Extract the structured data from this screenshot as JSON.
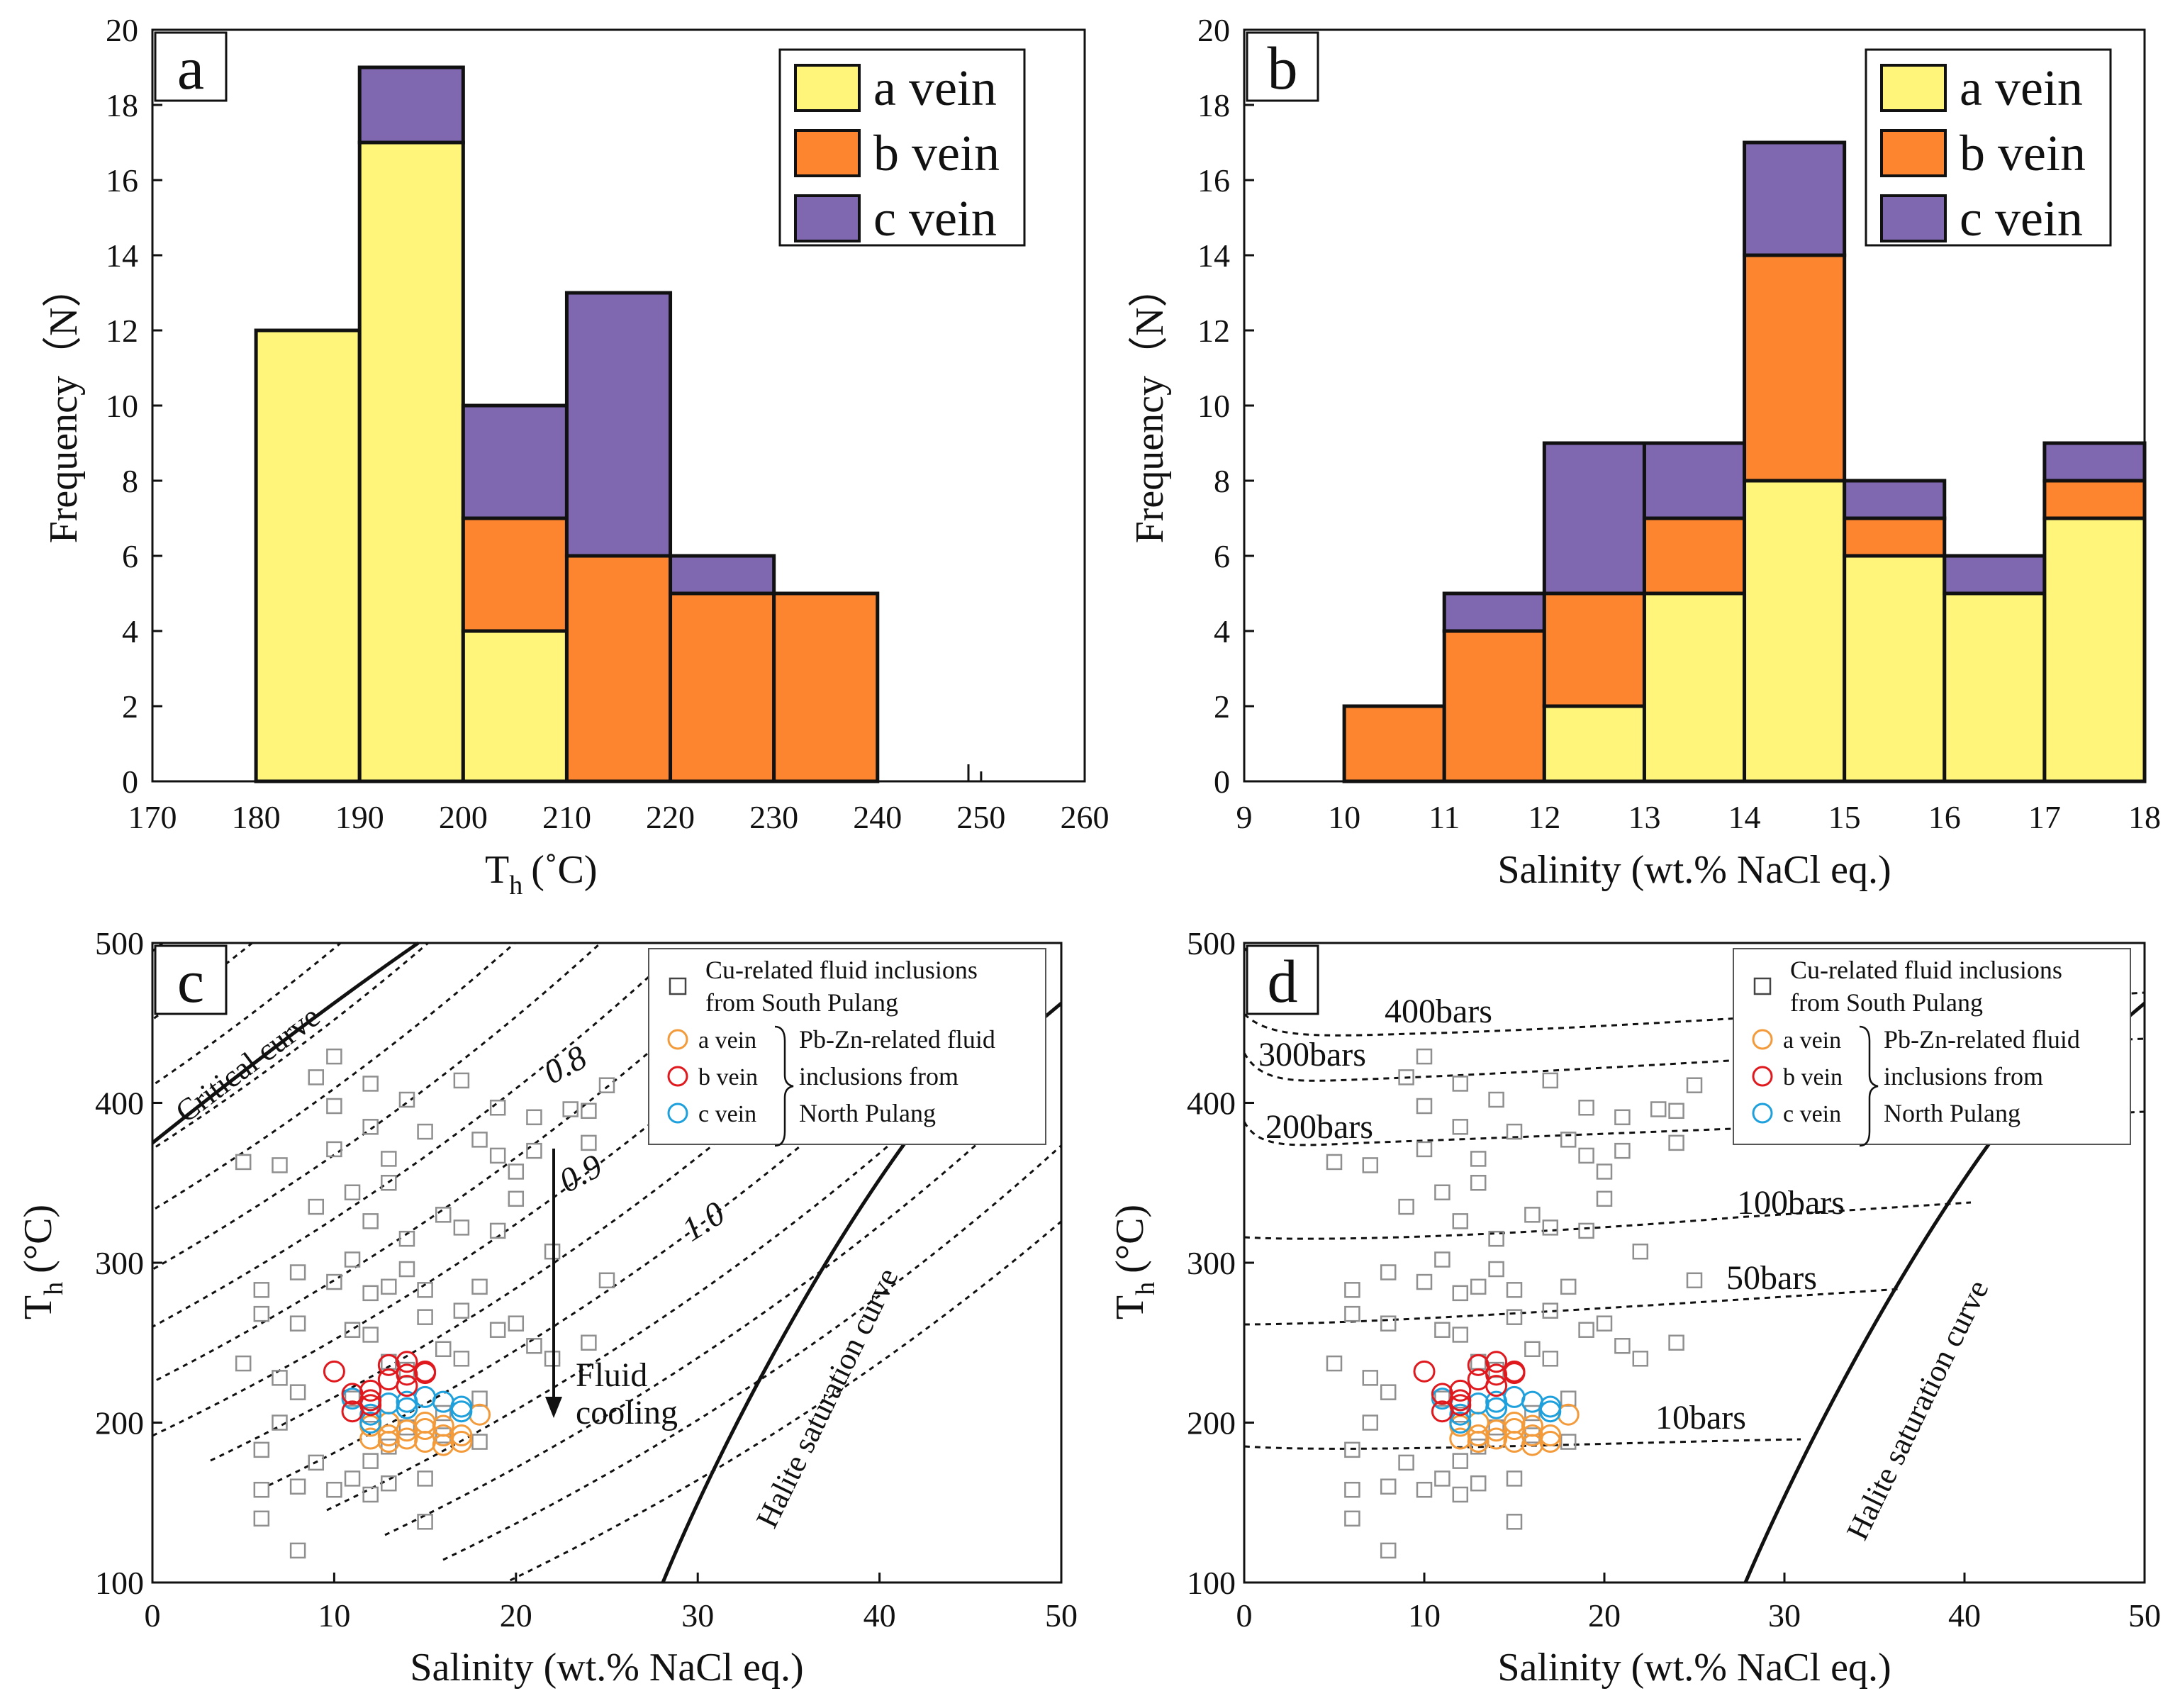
{
  "colors": {
    "a": "#fef57a",
    "b": "#fd8530",
    "c": "#7f68b0",
    "line": "#111111",
    "cu": "#8f8f8f",
    "fa": "#f39a3a",
    "fb": "#e0191e",
    "fc": "#1ea0dc"
  },
  "chart_data": [
    {
      "panel": "a",
      "type": "bar",
      "stacked": true,
      "ylabel": "Frequency（N）",
      "xlabel_main": "T",
      "xlabel_sub": "h",
      "xlabel_unit": "(˚C)",
      "xlim": [
        170,
        260
      ],
      "ylim": [
        0,
        20
      ],
      "xticks": [
        170,
        180,
        190,
        200,
        210,
        220,
        230,
        240,
        250,
        260
      ],
      "yticks": [
        0,
        2,
        4,
        6,
        8,
        10,
        12,
        14,
        16,
        18,
        20
      ],
      "bin_starts": [
        180,
        190,
        200,
        210,
        220,
        230
      ],
      "series": [
        {
          "name": "a vein",
          "key": "a",
          "values": [
            12,
            17,
            4,
            0,
            0,
            0
          ]
        },
        {
          "name": "b vein",
          "key": "b",
          "values": [
            0,
            0,
            3,
            6,
            5,
            5
          ]
        },
        {
          "name": "c vein",
          "key": "c",
          "values": [
            0,
            2,
            3,
            7,
            1,
            0
          ]
        }
      ],
      "legend": [
        "a vein",
        "b vein",
        "c vein"
      ]
    },
    {
      "panel": "b",
      "type": "bar",
      "stacked": true,
      "ylabel": "Frequency（N）",
      "xlabel": "Salinity (wt.% NaCl eq.)",
      "xlim": [
        9,
        18
      ],
      "ylim": [
        0,
        20
      ],
      "xticks": [
        9,
        10,
        11,
        12,
        13,
        14,
        15,
        16,
        17,
        18
      ],
      "yticks": [
        0,
        2,
        4,
        6,
        8,
        10,
        12,
        14,
        16,
        18,
        20
      ],
      "bin_starts": [
        10,
        11,
        12,
        13,
        14,
        15,
        16,
        17
      ],
      "series": [
        {
          "name": "a vein",
          "key": "a",
          "values": [
            0,
            0,
            2,
            5,
            8,
            6,
            5,
            7
          ]
        },
        {
          "name": "b vein",
          "key": "b",
          "values": [
            2,
            4,
            3,
            2,
            6,
            1,
            0,
            1
          ]
        },
        {
          "name": "c vein",
          "key": "c",
          "values": [
            0,
            1,
            4,
            2,
            3,
            1,
            1,
            1
          ]
        }
      ],
      "legend": [
        "a vein",
        "b vein",
        "c vein"
      ]
    },
    {
      "panel": "c",
      "type": "scatter",
      "xlabel": "Salinity (wt.% NaCl eq.)",
      "ylabel_main": "T",
      "ylabel_sub": "h",
      "ylabel_unit": "(°C)",
      "xlim": [
        0,
        50
      ],
      "ylim": [
        100,
        500
      ],
      "xticks": [
        0,
        10,
        20,
        30,
        40,
        50
      ],
      "yticks": [
        100,
        200,
        300,
        400,
        500
      ],
      "curve_labels": {
        "critical": "Critical curve",
        "halite": "Halite saturation curve"
      },
      "density_labels": [
        "0.8",
        "0.9",
        "1.0"
      ],
      "annotation": [
        "Fluid",
        "cooling"
      ],
      "legend": {
        "cu": [
          "Cu-related fluid inclusions",
          "from South Pulang"
        ],
        "veins": [
          "a vein",
          "b vein",
          "c vein"
        ],
        "pbzn": [
          "Pb-Zn-related fluid",
          "inclusions from",
          "North Pulang"
        ]
      }
    },
    {
      "panel": "d",
      "type": "scatter",
      "xlabel": "Salinity (wt.% NaCl eq.)",
      "ylabel_main": "T",
      "ylabel_sub": "h",
      "ylabel_unit": "(°C)",
      "xlim": [
        0,
        50
      ],
      "ylim": [
        100,
        500
      ],
      "xticks": [
        0,
        10,
        20,
        30,
        40,
        50
      ],
      "yticks": [
        100,
        200,
        300,
        400,
        500
      ],
      "curve_labels": {
        "halite": "Halite saturation curve"
      },
      "isobar_labels": [
        "400bars",
        "300bars",
        "200bars",
        "100bars",
        "50bars",
        "10bars"
      ],
      "legend": {
        "cu": [
          "Cu-related fluid inclusions",
          "from South Pulang"
        ],
        "veins": [
          "a vein",
          "b vein",
          "c vein"
        ],
        "pbzn": [
          "Pb-Zn-related fluid",
          "inclusions from",
          "North Pulang"
        ]
      }
    }
  ],
  "scatter_points": {
    "cu": [
      [
        10,
        429
      ],
      [
        9,
        416
      ],
      [
        10,
        398
      ],
      [
        12,
        412
      ],
      [
        14,
        402
      ],
      [
        17,
        414
      ],
      [
        19,
        397
      ],
      [
        23,
        396
      ],
      [
        25,
        411
      ],
      [
        5,
        363
      ],
      [
        7,
        361
      ],
      [
        10,
        371
      ],
      [
        12,
        385
      ],
      [
        13,
        365
      ],
      [
        15,
        382
      ],
      [
        18,
        377
      ],
      [
        19,
        367
      ],
      [
        20,
        357
      ],
      [
        21,
        391
      ],
      [
        24,
        375
      ],
      [
        9,
        335
      ],
      [
        11,
        344
      ],
      [
        12,
        326
      ],
      [
        14,
        315
      ],
      [
        16,
        330
      ],
      [
        17,
        322
      ],
      [
        20,
        340
      ],
      [
        22,
        307
      ],
      [
        25,
        289
      ],
      [
        6,
        283
      ],
      [
        8,
        294
      ],
      [
        10,
        288
      ],
      [
        12,
        281
      ],
      [
        13,
        285
      ],
      [
        14,
        296
      ],
      [
        15,
        283
      ],
      [
        18,
        285
      ],
      [
        20,
        262
      ],
      [
        21,
        248
      ],
      [
        22,
        240
      ],
      [
        24,
        250
      ],
      [
        6,
        268
      ],
      [
        8,
        262
      ],
      [
        11,
        258
      ],
      [
        12,
        255
      ],
      [
        13,
        238
      ],
      [
        14,
        233
      ],
      [
        16,
        246
      ],
      [
        17,
        240
      ],
      [
        19,
        258
      ],
      [
        5,
        237
      ],
      [
        8,
        219
      ],
      [
        11,
        215
      ],
      [
        12,
        205
      ],
      [
        14,
        197
      ],
      [
        16,
        206
      ],
      [
        18,
        215
      ],
      [
        6,
        183
      ],
      [
        7,
        200
      ],
      [
        9,
        175
      ],
      [
        11,
        165
      ],
      [
        12,
        176
      ],
      [
        13,
        185
      ],
      [
        15,
        165
      ],
      [
        18,
        188
      ],
      [
        6,
        158
      ],
      [
        8,
        160
      ],
      [
        10,
        158
      ],
      [
        12,
        155
      ],
      [
        13,
        162
      ],
      [
        15,
        138
      ],
      [
        6,
        140
      ],
      [
        8,
        120
      ],
      [
        16,
        192
      ],
      [
        7,
        228
      ],
      [
        15,
        266
      ],
      [
        19,
        320
      ],
      [
        21,
        370
      ],
      [
        24,
        395
      ],
      [
        11,
        302
      ],
      [
        13,
        350
      ],
      [
        17,
        270
      ]
    ],
    "a": [
      [
        12,
        190
      ],
      [
        13,
        192
      ],
      [
        14,
        195
      ],
      [
        15,
        196
      ],
      [
        16,
        198
      ],
      [
        17,
        192
      ],
      [
        18,
        205
      ],
      [
        13,
        200
      ],
      [
        15,
        188
      ],
      [
        16,
        186
      ],
      [
        14,
        190
      ],
      [
        17,
        188
      ],
      [
        13,
        188
      ],
      [
        15,
        200
      ],
      [
        16,
        192
      ],
      [
        12,
        198
      ]
    ],
    "b": [
      [
        10,
        232
      ],
      [
        11,
        218
      ],
      [
        12,
        220
      ],
      [
        13,
        236
      ],
      [
        14,
        230
      ],
      [
        15,
        232
      ],
      [
        11,
        207
      ],
      [
        12,
        214
      ],
      [
        14,
        238
      ],
      [
        14,
        223
      ],
      [
        13,
        227
      ],
      [
        12,
        211
      ],
      [
        15,
        231
      ]
    ],
    "c": [
      [
        11,
        215
      ],
      [
        12,
        200
      ],
      [
        13,
        212
      ],
      [
        14,
        213
      ],
      [
        15,
        216
      ],
      [
        17,
        210
      ],
      [
        12,
        205
      ],
      [
        16,
        213
      ],
      [
        14,
        209
      ],
      [
        17,
        207
      ]
    ]
  }
}
